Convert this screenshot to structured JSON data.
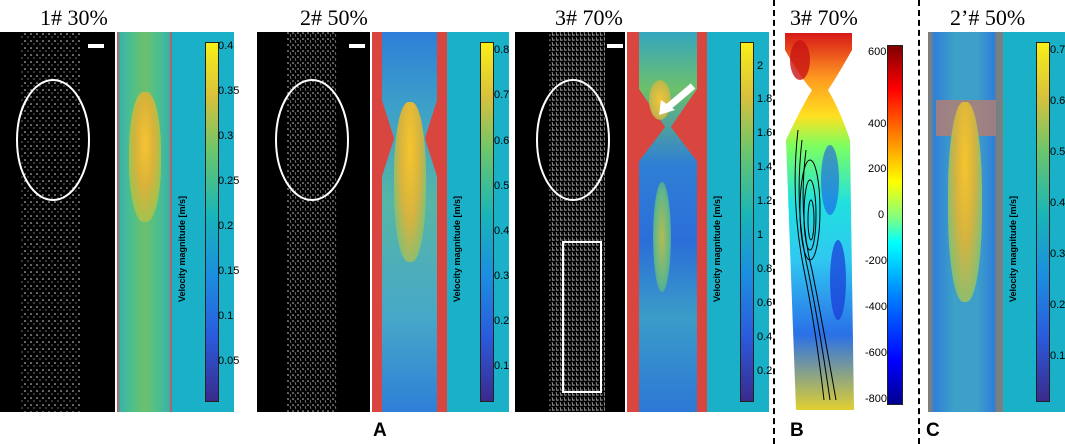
{
  "panels": [
    {
      "title": "1# 30%",
      "ticks": [
        "0.4",
        "0.35",
        "0.3",
        "0.25",
        "0.2",
        "0.15",
        "0.1",
        "0.05"
      ],
      "axis_label": "Velocity magnitude [m/s]"
    },
    {
      "title": "2# 50%",
      "ticks": [
        "0.8",
        "0.7",
        "0.6",
        "0.5",
        "0.4",
        "0.3",
        "0.2",
        "0.1"
      ],
      "axis_label": "Velocity magnitude [m/s]"
    },
    {
      "title": "3# 70%",
      "ticks": [
        "2",
        "1.8",
        "1.6",
        "1.4",
        "1.2",
        "1",
        "0.8",
        "0.6",
        "0.4",
        "0.2"
      ],
      "axis_label": "Velocity magnitude [m/s]"
    },
    {
      "title": "3# 70%",
      "ticks": [
        "600",
        "400",
        "200",
        "0",
        "-200",
        "-400",
        "-600",
        "-800"
      ]
    },
    {
      "title": "2’# 50%",
      "ticks": [
        "0.7",
        "0.6",
        "0.5",
        "0.4",
        "0.3",
        "0.2",
        "0.1"
      ],
      "axis_label": "Velocity magnitude [m/s]"
    }
  ],
  "labels": {
    "a": "A",
    "b": "B",
    "c": "C"
  },
  "colors": {
    "flow_bg": "#1ab1c8",
    "wall_red": "#e04040",
    "piv_black": "#000000"
  }
}
